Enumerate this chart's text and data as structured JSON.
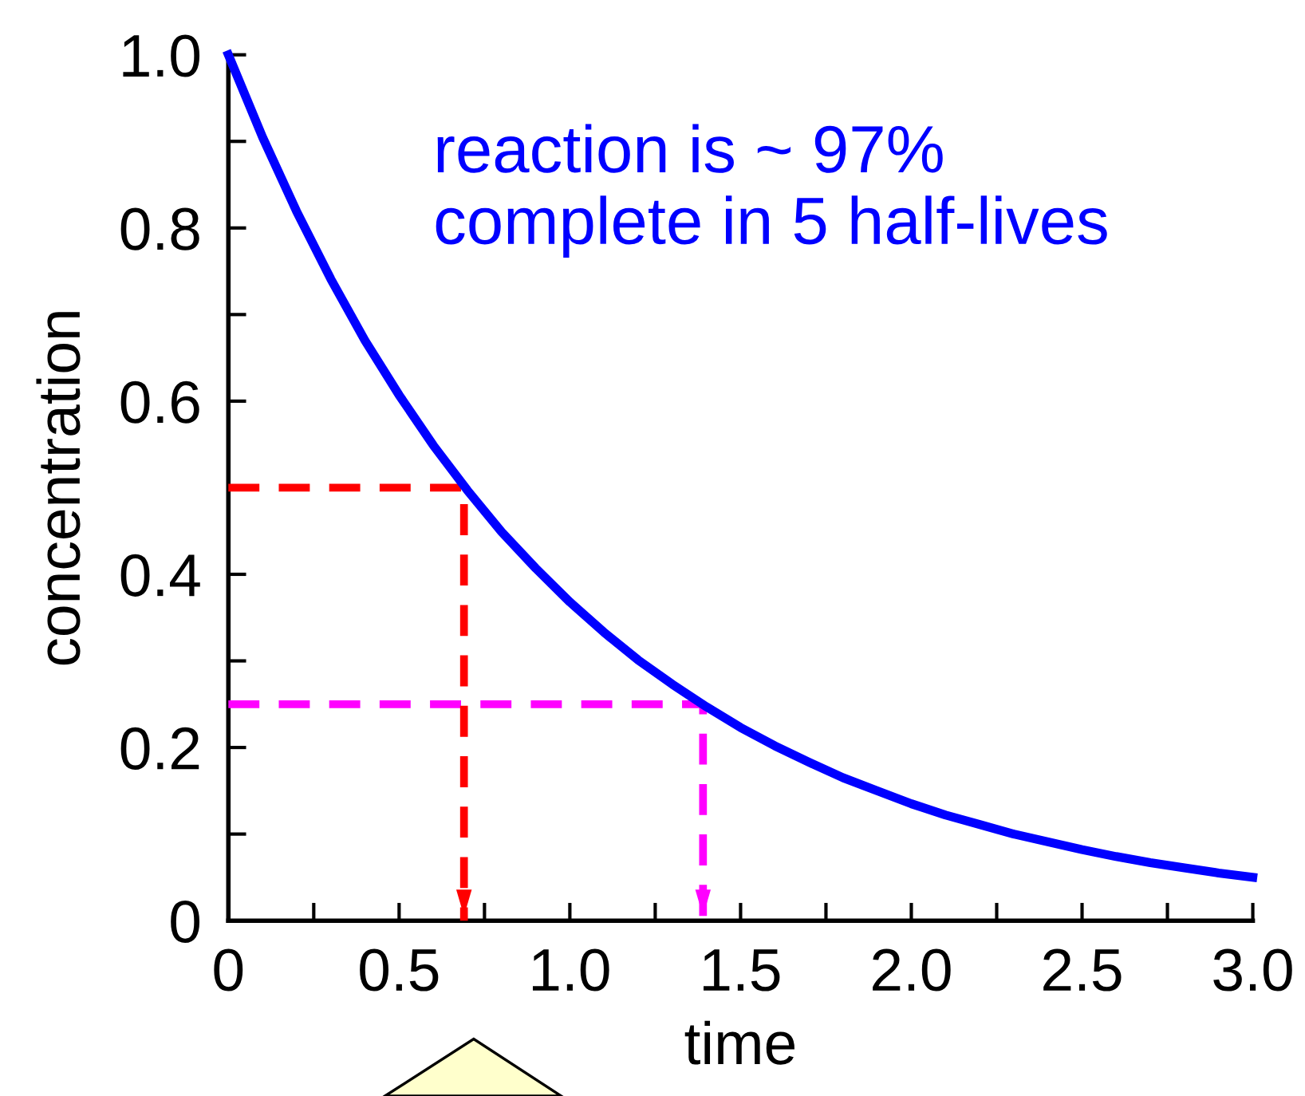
{
  "chart_data": {
    "type": "line",
    "xlabel": "time",
    "ylabel": "concentration",
    "annotations": [
      "reaction is ~ 97%\ncomplete in 5 half-lives"
    ],
    "xlim": [
      0,
      3.0
    ],
    "ylim": [
      0,
      1.0
    ],
    "xticks": [
      0,
      0.5,
      {
        "value": 0.25,
        "label": null
      },
      {
        "value": 0.75,
        "label": null
      },
      {
        "value": 1.0,
        "label": "1.0"
      },
      {
        "value": 1.25,
        "label": null
      },
      1.5,
      {
        "value": 1.75,
        "label": null
      },
      {
        "value": 2.0,
        "label": "2.0"
      },
      {
        "value": 2.25,
        "label": null
      },
      2.5,
      {
        "value": 2.75,
        "label": null
      },
      {
        "value": 3.0,
        "label": "3.0"
      }
    ],
    "yticks": [
      0,
      {
        "value": 0.1,
        "label": null
      },
      0.2,
      {
        "value": 0.3,
        "label": null
      },
      0.4,
      {
        "value": 0.5,
        "label": null
      },
      0.6,
      {
        "value": 0.7,
        "label": null
      },
      0.8,
      {
        "value": 0.9,
        "label": null
      },
      {
        "value": 1.0,
        "label": "1.0"
      }
    ],
    "grid": false,
    "legend": false,
    "series": [
      {
        "color": "#0000ff",
        "line_style": "solid",
        "x": [
          0,
          0.1,
          0.2,
          0.3,
          0.4,
          0.5,
          0.6,
          0.7,
          0.8,
          0.9,
          1.0,
          1.1,
          1.2,
          1.3,
          1.4,
          1.5,
          1.6,
          1.7,
          1.8,
          1.9,
          2.0,
          2.1,
          2.2,
          2.3,
          2.4,
          2.5,
          2.6,
          2.7,
          2.8,
          2.9,
          3.0
        ],
        "values": [
          1.0,
          0.905,
          0.819,
          0.741,
          0.67,
          0.607,
          0.549,
          0.497,
          0.449,
          0.407,
          0.368,
          0.333,
          0.301,
          0.273,
          0.247,
          0.223,
          0.202,
          0.183,
          0.165,
          0.15,
          0.135,
          0.122,
          0.111,
          0.1,
          0.091,
          0.082,
          0.074,
          0.067,
          0.061,
          0.055,
          0.05
        ]
      },
      {
        "color": "#ff0000",
        "line_style": "dashed",
        "x": [
          0,
          0.69,
          0.69
        ],
        "values": [
          0.5,
          0.5,
          0
        ]
      },
      {
        "color": "#ff00ff",
        "line_style": "dashed",
        "x": [
          0,
          1.39,
          1.39
        ],
        "values": [
          0.25,
          0.25,
          0
        ]
      }
    ]
  }
}
